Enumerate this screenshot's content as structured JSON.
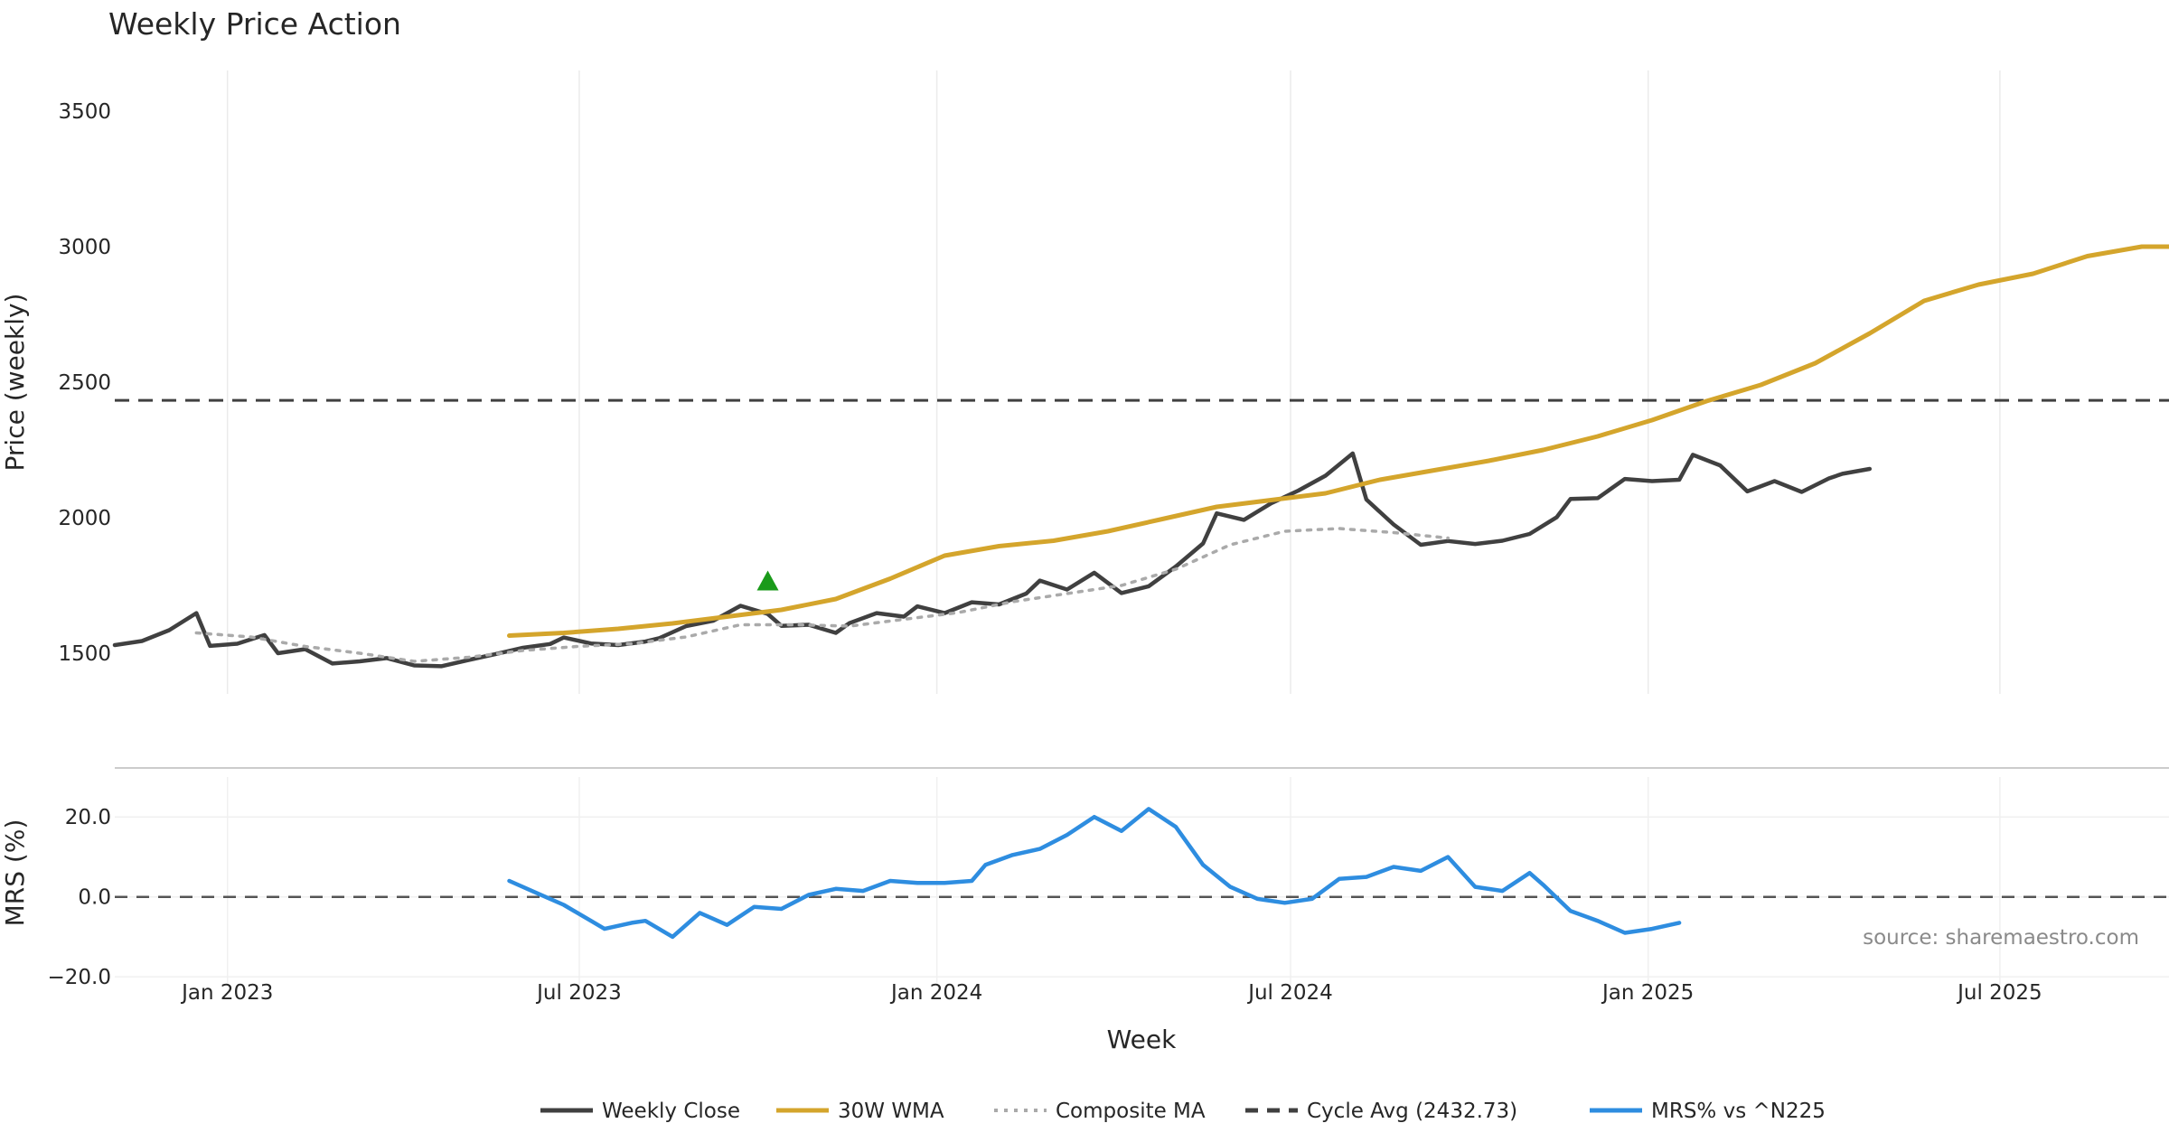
{
  "chart_data": {
    "type": "line",
    "title": "Weekly Price Action",
    "source_note": "source: sharemaestro.com",
    "xlabel": "Week",
    "x_ticks": [
      "Jan 2023",
      "Jul 2023",
      "Jan 2024",
      "Jul 2024",
      "Jan 2025",
      "Jul 2025"
    ],
    "x_tick_dates": [
      "2023-01-01",
      "2023-07-01",
      "2024-01-01",
      "2024-07-01",
      "2025-01-01",
      "2025-07-01"
    ],
    "xlim": [
      "2022-11-04",
      "2025-09-26"
    ],
    "grid": true,
    "legend_position": "bottom-center",
    "price_panel": {
      "ylabel": "Price (weekly)",
      "yticks": [
        1500,
        2000,
        2500,
        3000,
        3500
      ],
      "ylim": [
        1350,
        3650
      ],
      "cycle_avg": 2432.73,
      "signal_marker": {
        "date": "2023-10-06",
        "value": 1765,
        "color": "#1a9a1a"
      },
      "series": [
        {
          "name": "Weekly Close",
          "color": "#404040",
          "style": "solid",
          "points": [
            [
              "2022-11-04",
              1530
            ],
            [
              "2022-11-18",
              1545
            ],
            [
              "2022-12-02",
              1585
            ],
            [
              "2022-12-16",
              1648
            ],
            [
              "2022-12-23",
              1527
            ],
            [
              "2023-01-06",
              1535
            ],
            [
              "2023-01-20",
              1567
            ],
            [
              "2023-01-27",
              1500
            ],
            [
              "2023-02-10",
              1515
            ],
            [
              "2023-02-24",
              1462
            ],
            [
              "2023-03-10",
              1470
            ],
            [
              "2023-03-24",
              1482
            ],
            [
              "2023-04-07",
              1455
            ],
            [
              "2023-04-21",
              1452
            ],
            [
              "2023-05-05",
              1475
            ],
            [
              "2023-05-19",
              1497
            ],
            [
              "2023-06-02",
              1520
            ],
            [
              "2023-06-16",
              1534
            ],
            [
              "2023-06-23",
              1558
            ],
            [
              "2023-07-07",
              1536
            ],
            [
              "2023-07-21",
              1530
            ],
            [
              "2023-08-04",
              1543
            ],
            [
              "2023-08-11",
              1555
            ],
            [
              "2023-08-25",
              1600
            ],
            [
              "2023-09-08",
              1620
            ],
            [
              "2023-09-22",
              1675
            ],
            [
              "2023-10-06",
              1645
            ],
            [
              "2023-10-13",
              1601
            ],
            [
              "2023-10-27",
              1605
            ],
            [
              "2023-11-10",
              1575
            ],
            [
              "2023-11-17",
              1611
            ],
            [
              "2023-12-01",
              1648
            ],
            [
              "2023-12-15",
              1635
            ],
            [
              "2023-12-22",
              1673
            ],
            [
              "2024-01-05",
              1648
            ],
            [
              "2024-01-19",
              1688
            ],
            [
              "2024-02-02",
              1680
            ],
            [
              "2024-02-16",
              1720
            ],
            [
              "2024-02-23",
              1768
            ],
            [
              "2024-03-08",
              1735
            ],
            [
              "2024-03-22",
              1797
            ],
            [
              "2024-04-05",
              1722
            ],
            [
              "2024-04-19",
              1747
            ],
            [
              "2024-05-03",
              1820
            ],
            [
              "2024-05-17",
              1905
            ],
            [
              "2024-05-24",
              2016
            ],
            [
              "2024-06-07",
              1992
            ],
            [
              "2024-06-21",
              2053
            ],
            [
              "2024-07-05",
              2100
            ],
            [
              "2024-07-19",
              2155
            ],
            [
              "2024-08-02",
              2237
            ],
            [
              "2024-08-09",
              2067
            ],
            [
              "2024-08-23",
              1975
            ],
            [
              "2024-09-06",
              1900
            ],
            [
              "2024-09-20",
              1914
            ],
            [
              "2024-10-04",
              1903
            ],
            [
              "2024-10-18",
              1915
            ],
            [
              "2024-11-01",
              1940
            ],
            [
              "2024-11-15",
              2002
            ],
            [
              "2024-11-22",
              2069
            ],
            [
              "2024-12-06",
              2072
            ],
            [
              "2024-12-20",
              2143
            ],
            [
              "2025-01-03",
              2135
            ],
            [
              "2025-01-17",
              2140
            ],
            [
              "2025-01-24",
              2232
            ],
            [
              "2025-02-07",
              2193
            ],
            [
              "2025-02-21",
              2097
            ],
            [
              "2025-03-07",
              2135
            ],
            [
              "2025-03-21",
              2095
            ],
            [
              "2025-04-04",
              2145
            ],
            [
              "2025-04-11",
              2162
            ],
            [
              "2025-04-25",
              2180
            ]
          ]
        },
        {
          "name": "30W WMA",
          "color": "#d4a52c",
          "style": "solid",
          "points": [
            [
              "2023-05-26",
              1565
            ],
            [
              "2023-06-23",
              1575
            ],
            [
              "2023-07-21",
              1590
            ],
            [
              "2023-08-18",
              1610
            ],
            [
              "2023-09-15",
              1635
            ],
            [
              "2023-10-13",
              1660
            ],
            [
              "2023-11-10",
              1700
            ],
            [
              "2023-12-08",
              1775
            ],
            [
              "2024-01-05",
              1860
            ],
            [
              "2024-02-02",
              1895
            ],
            [
              "2024-03-01",
              1915
            ],
            [
              "2024-03-29",
              1950
            ],
            [
              "2024-04-26",
              1995
            ],
            [
              "2024-05-24",
              2040
            ],
            [
              "2024-06-21",
              2065
            ],
            [
              "2024-07-19",
              2090
            ],
            [
              "2024-08-16",
              2140
            ],
            [
              "2024-09-13",
              2175
            ],
            [
              "2024-10-11",
              2210
            ],
            [
              "2024-11-08",
              2250
            ],
            [
              "2024-12-06",
              2300
            ],
            [
              "2025-01-03",
              2360
            ],
            [
              "2025-01-31",
              2430
            ],
            [
              "2025-02-28",
              2490
            ],
            [
              "2025-03-28",
              2570
            ],
            [
              "2025-04-25",
              2680
            ],
            [
              "2025-05-23",
              2800
            ],
            [
              "2025-06-20",
              2860
            ],
            [
              "2025-07-18",
              2900
            ],
            [
              "2025-08-15",
              2965
            ],
            [
              "2025-09-12",
              3000
            ],
            [
              "2025-09-26",
              3000
            ]
          ]
        },
        {
          "name": "Composite MA",
          "color": "#aaaaaa",
          "style": "dotted",
          "points": [
            [
              "2022-12-16",
              1575
            ],
            [
              "2023-01-13",
              1560
            ],
            [
              "2023-02-10",
              1525
            ],
            [
              "2023-03-10",
              1500
            ],
            [
              "2023-04-07",
              1470
            ],
            [
              "2023-05-05",
              1485
            ],
            [
              "2023-06-02",
              1510
            ],
            [
              "2023-06-30",
              1525
            ],
            [
              "2023-07-28",
              1535
            ],
            [
              "2023-08-25",
              1560
            ],
            [
              "2023-09-22",
              1605
            ],
            [
              "2023-10-20",
              1605
            ],
            [
              "2023-11-17",
              1600
            ],
            [
              "2023-12-15",
              1625
            ],
            [
              "2024-01-12",
              1650
            ],
            [
              "2024-02-09",
              1690
            ],
            [
              "2024-03-08",
              1720
            ],
            [
              "2024-04-05",
              1750
            ],
            [
              "2024-05-03",
              1810
            ],
            [
              "2024-05-31",
              1900
            ],
            [
              "2024-06-28",
              1950
            ],
            [
              "2024-07-26",
              1960
            ],
            [
              "2024-08-23",
              1945
            ],
            [
              "2024-09-20",
              1925
            ]
          ]
        }
      ]
    },
    "mrs_panel": {
      "ylabel": "MRS (%)",
      "yticks": [
        -20.0,
        0.0,
        20.0
      ],
      "ytick_labels": [
        "−20.0",
        "0.0",
        "20.0"
      ],
      "ylim": [
        -22,
        30
      ],
      "zero_line": 0.0,
      "series": [
        {
          "name": "MRS% vs ^N225",
          "color": "#2e8de0",
          "style": "solid",
          "points": [
            [
              "2023-05-26",
              4.0
            ],
            [
              "2023-06-09",
              1.0
            ],
            [
              "2023-06-23",
              -2.0
            ],
            [
              "2023-07-07",
              -6.0
            ],
            [
              "2023-07-14",
              -8.0
            ],
            [
              "2023-07-28",
              -6.5
            ],
            [
              "2023-08-04",
              -6.0
            ],
            [
              "2023-08-18",
              -10.0
            ],
            [
              "2023-09-01",
              -4.0
            ],
            [
              "2023-09-15",
              -7.0
            ],
            [
              "2023-09-29",
              -2.5
            ],
            [
              "2023-10-13",
              -3.0
            ],
            [
              "2023-10-27",
              0.5
            ],
            [
              "2023-11-10",
              2.0
            ],
            [
              "2023-11-24",
              1.5
            ],
            [
              "2023-12-08",
              4.0
            ],
            [
              "2023-12-22",
              3.5
            ],
            [
              "2024-01-05",
              3.5
            ],
            [
              "2024-01-19",
              4.0
            ],
            [
              "2024-01-26",
              8.0
            ],
            [
              "2024-02-09",
              10.5
            ],
            [
              "2024-02-23",
              12.0
            ],
            [
              "2024-03-08",
              15.5
            ],
            [
              "2024-03-22",
              20.0
            ],
            [
              "2024-04-05",
              16.5
            ],
            [
              "2024-04-19",
              22.0
            ],
            [
              "2024-05-03",
              17.5
            ],
            [
              "2024-05-17",
              8.0
            ],
            [
              "2024-05-31",
              2.5
            ],
            [
              "2024-06-14",
              -0.5
            ],
            [
              "2024-06-28",
              -1.5
            ],
            [
              "2024-07-12",
              -0.5
            ],
            [
              "2024-07-26",
              4.5
            ],
            [
              "2024-08-09",
              5.0
            ],
            [
              "2024-08-23",
              7.5
            ],
            [
              "2024-09-06",
              6.5
            ],
            [
              "2024-09-20",
              10.0
            ],
            [
              "2024-10-04",
              2.5
            ],
            [
              "2024-10-18",
              1.5
            ],
            [
              "2024-11-01",
              6.0
            ],
            [
              "2024-11-08",
              3.0
            ],
            [
              "2024-11-22",
              -3.5
            ],
            [
              "2024-12-06",
              -6.0
            ],
            [
              "2024-12-20",
              -9.0
            ],
            [
              "2025-01-03",
              -8.0
            ],
            [
              "2025-01-17",
              -6.5
            ]
          ]
        }
      ]
    },
    "legend": [
      {
        "label": "Weekly Close",
        "color": "#404040",
        "style": "solid"
      },
      {
        "label": "30W WMA",
        "color": "#d4a52c",
        "style": "solid"
      },
      {
        "label": "Composite MA",
        "color": "#aaaaaa",
        "style": "dotted"
      },
      {
        "label": "Cycle Avg (2432.73)",
        "color": "#404040",
        "style": "dashed"
      },
      {
        "label": "MRS% vs ^N225",
        "color": "#2e8de0",
        "style": "solid"
      }
    ]
  }
}
